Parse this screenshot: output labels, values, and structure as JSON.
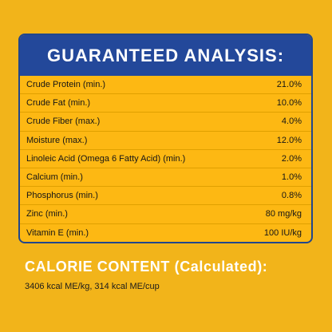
{
  "analysis": {
    "title": "GUARANTEED ANALYSIS:",
    "rows": [
      {
        "label": "Crude Protein (min.)",
        "value": "21.0%"
      },
      {
        "label": "Crude Fat (min.)",
        "value": "10.0%"
      },
      {
        "label": "Crude Fiber (max.)",
        "value": "4.0%"
      },
      {
        "label": "Moisture (max.)",
        "value": "12.0%"
      },
      {
        "label": "Linoleic Acid (Omega 6 Fatty Acid) (min.)",
        "value": "2.0%"
      },
      {
        "label": "Calcium (min.)",
        "value": "1.0%"
      },
      {
        "label": "Phosphorus (min.)",
        "value": "0.8%"
      },
      {
        "label": "Zinc (min.)",
        "value": "80 mg/kg"
      },
      {
        "label": "Vitamin E (min.)",
        "value": "100 IU/kg"
      }
    ]
  },
  "calorie": {
    "title": "CALORIE CONTENT (Calculated):",
    "value": "3406 kcal ME/kg, 314 kcal ME/cup"
  },
  "colors": {
    "background": "#f2b41a",
    "panel_header": "#23489a",
    "panel_border": "#20468c",
    "heading_text": "#ffffff",
    "body_text": "#151515"
  }
}
